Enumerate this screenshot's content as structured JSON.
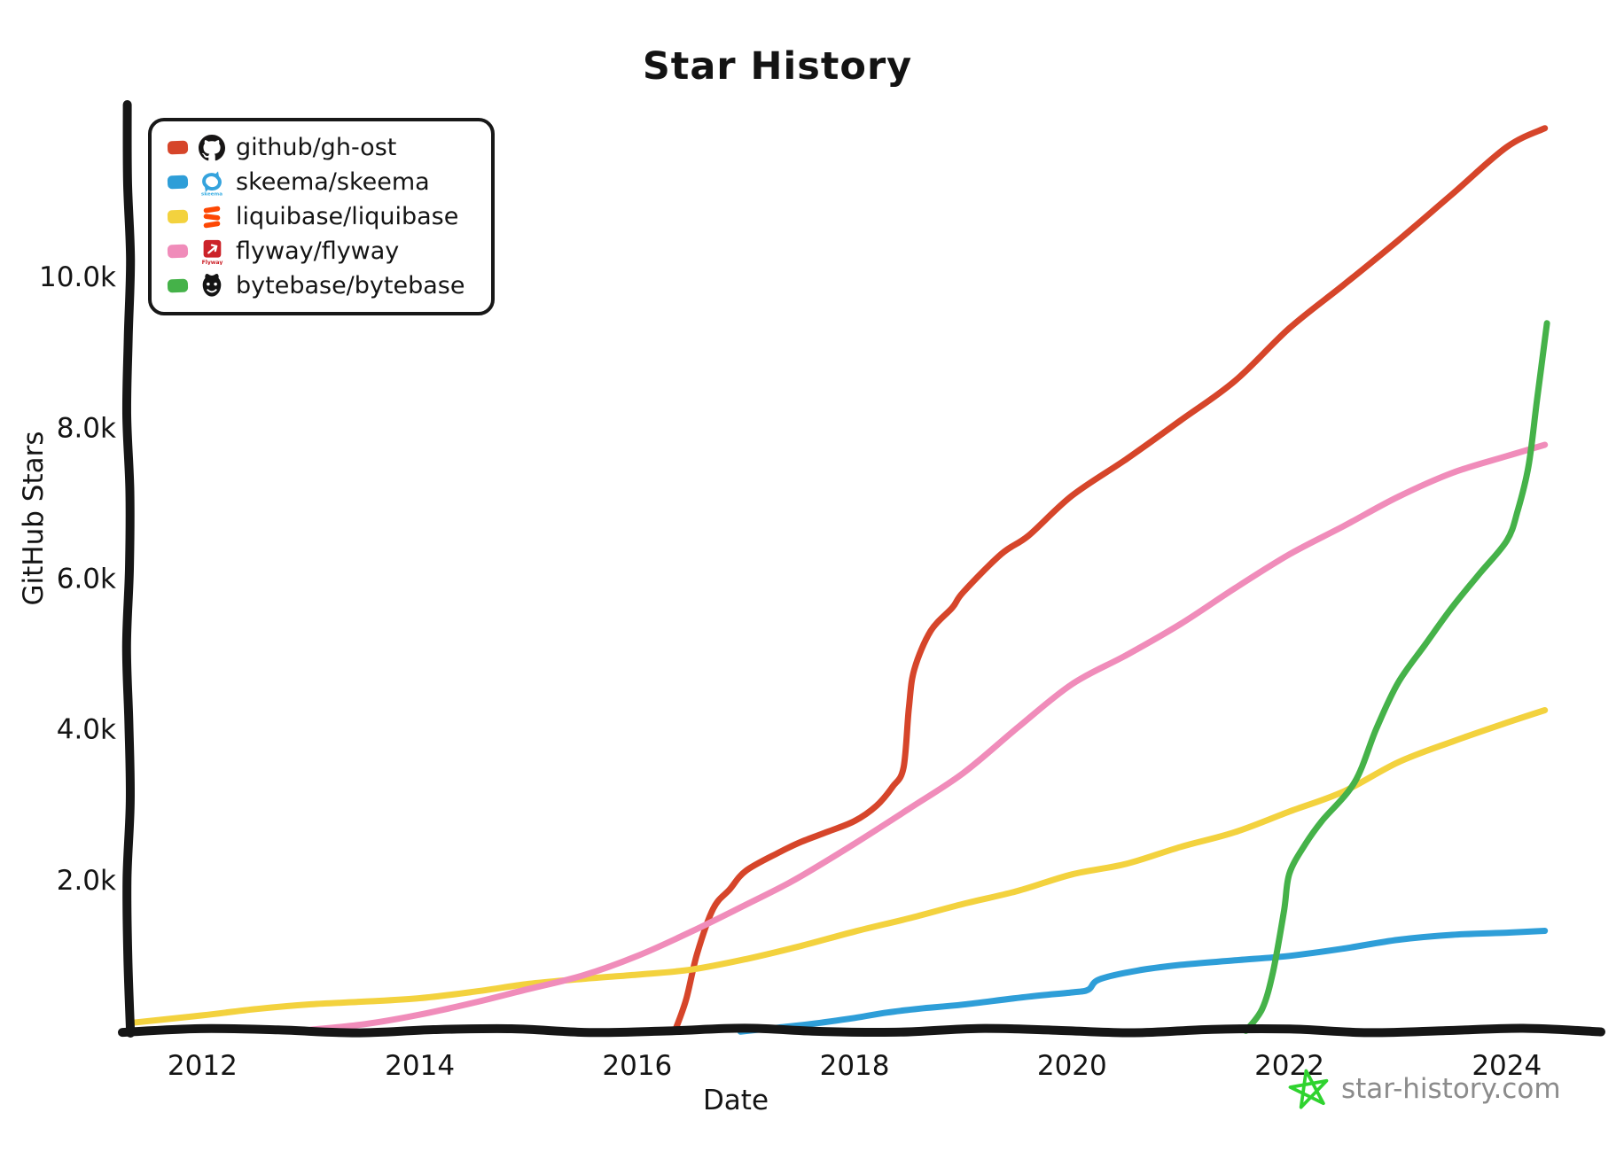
{
  "title": "Star History",
  "axes": {
    "ink": "#161616",
    "x_label": "Date",
    "y_label": "GitHub Stars",
    "x_ticks": [
      {
        "label": "2012",
        "year": 2012
      },
      {
        "label": "2014",
        "year": 2014
      },
      {
        "label": "2016",
        "year": 2016
      },
      {
        "label": "2018",
        "year": 2018
      },
      {
        "label": "2020",
        "year": 2020
      },
      {
        "label": "2022",
        "year": 2022
      },
      {
        "label": "2024",
        "year": 2024
      }
    ],
    "y_ticks": [
      {
        "label": "2.0k",
        "value": 2000
      },
      {
        "label": "4.0k",
        "value": 4000
      },
      {
        "label": "6.0k",
        "value": 6000
      },
      {
        "label": "8.0k",
        "value": 8000
      },
      {
        "label": "10.0k",
        "value": 10000
      }
    ]
  },
  "legend": [
    {
      "label": "github/gh-ost",
      "color": "#d6452a",
      "icon": "github-icon"
    },
    {
      "label": "skeema/skeema",
      "color": "#2e9ed8",
      "icon": "skeema-icon"
    },
    {
      "label": "liquibase/liquibase",
      "color": "#f3d23e",
      "icon": "liquibase-icon"
    },
    {
      "label": "flyway/flyway",
      "color": "#f08cba",
      "icon": "flyway-icon"
    },
    {
      "label": "bytebase/bytebase",
      "color": "#45b249",
      "icon": "bytebase-icon"
    }
  ],
  "watermark": {
    "text": "star-history.com",
    "star_color": "#2fd32f",
    "text_color": "#8b8b8b"
  },
  "chart_data": {
    "type": "line",
    "title": "Star History",
    "xlabel": "Date",
    "ylabel": "GitHub Stars",
    "x_unit": "decimal_year",
    "xlim": [
      2011.32,
      2024.85
    ],
    "ylim": [
      0,
      12200
    ],
    "grid": false,
    "legend_position": "top-left",
    "series": [
      {
        "name": "github/gh-ost",
        "color": "#d6452a",
        "points": [
          [
            2016.35,
            0
          ],
          [
            2016.45,
            400
          ],
          [
            2016.55,
            1000
          ],
          [
            2016.7,
            1600
          ],
          [
            2016.85,
            1850
          ],
          [
            2017.0,
            2100
          ],
          [
            2017.3,
            2350
          ],
          [
            2017.5,
            2500
          ],
          [
            2017.75,
            2650
          ],
          [
            2018.0,
            2800
          ],
          [
            2018.2,
            3000
          ],
          [
            2018.35,
            3250
          ],
          [
            2018.45,
            3500
          ],
          [
            2018.5,
            4300
          ],
          [
            2018.55,
            4800
          ],
          [
            2018.7,
            5300
          ],
          [
            2018.9,
            5600
          ],
          [
            2019.0,
            5800
          ],
          [
            2019.35,
            6300
          ],
          [
            2019.6,
            6550
          ],
          [
            2020.0,
            7100
          ],
          [
            2020.5,
            7600
          ],
          [
            2021.0,
            8100
          ],
          [
            2021.5,
            8600
          ],
          [
            2022.0,
            9300
          ],
          [
            2022.5,
            9900
          ],
          [
            2023.0,
            10500
          ],
          [
            2023.5,
            11100
          ],
          [
            2024.0,
            11700
          ],
          [
            2024.35,
            11950
          ]
        ]
      },
      {
        "name": "skeema/skeema",
        "color": "#2e9ed8",
        "points": [
          [
            2016.95,
            0
          ],
          [
            2017.3,
            60
          ],
          [
            2017.6,
            100
          ],
          [
            2018.0,
            160
          ],
          [
            2018.3,
            220
          ],
          [
            2018.6,
            270
          ],
          [
            2019.0,
            340
          ],
          [
            2019.6,
            470
          ],
          [
            2020.0,
            520
          ],
          [
            2020.15,
            550
          ],
          [
            2020.25,
            680
          ],
          [
            2020.6,
            780
          ],
          [
            2021.0,
            850
          ],
          [
            2021.5,
            930
          ],
          [
            2022.0,
            1010
          ],
          [
            2022.5,
            1100
          ],
          [
            2023.0,
            1190
          ],
          [
            2023.5,
            1250
          ],
          [
            2024.0,
            1300
          ],
          [
            2024.35,
            1340
          ]
        ]
      },
      {
        "name": "liquibase/liquibase",
        "color": "#f3d23e",
        "points": [
          [
            2011.35,
            120
          ],
          [
            2012.0,
            210
          ],
          [
            2012.5,
            270
          ],
          [
            2013.0,
            330
          ],
          [
            2013.5,
            390
          ],
          [
            2014.0,
            450
          ],
          [
            2014.5,
            520
          ],
          [
            2015.0,
            600
          ],
          [
            2015.5,
            670
          ],
          [
            2016.0,
            750
          ],
          [
            2016.5,
            830
          ],
          [
            2017.0,
            950
          ],
          [
            2017.5,
            1100
          ],
          [
            2018.0,
            1300
          ],
          [
            2018.5,
            1500
          ],
          [
            2019.0,
            1700
          ],
          [
            2019.5,
            1850
          ],
          [
            2020.0,
            2050
          ],
          [
            2020.5,
            2200
          ],
          [
            2021.0,
            2450
          ],
          [
            2021.5,
            2650
          ],
          [
            2022.0,
            2900
          ],
          [
            2022.5,
            3150
          ],
          [
            2023.0,
            3550
          ],
          [
            2023.5,
            3850
          ],
          [
            2024.0,
            4100
          ],
          [
            2024.35,
            4250
          ]
        ]
      },
      {
        "name": "flyway/flyway",
        "color": "#f08cba",
        "points": [
          [
            2013.0,
            30
          ],
          [
            2013.5,
            100
          ],
          [
            2014.0,
            200
          ],
          [
            2014.5,
            350
          ],
          [
            2015.0,
            550
          ],
          [
            2015.5,
            750
          ],
          [
            2016.0,
            1000
          ],
          [
            2016.5,
            1300
          ],
          [
            2017.0,
            1650
          ],
          [
            2017.45,
            2000
          ],
          [
            2018.0,
            2500
          ],
          [
            2018.5,
            2950
          ],
          [
            2019.0,
            3400
          ],
          [
            2019.5,
            4000
          ],
          [
            2020.0,
            4600
          ],
          [
            2020.5,
            5000
          ],
          [
            2021.0,
            5400
          ],
          [
            2021.5,
            5850
          ],
          [
            2022.0,
            6300
          ],
          [
            2022.5,
            6700
          ],
          [
            2023.0,
            7100
          ],
          [
            2023.5,
            7400
          ],
          [
            2024.0,
            7600
          ],
          [
            2024.35,
            7750
          ]
        ]
      },
      {
        "name": "bytebase/bytebase",
        "color": "#45b249",
        "points": [
          [
            2021.6,
            0
          ],
          [
            2021.75,
            300
          ],
          [
            2021.85,
            800
          ],
          [
            2021.95,
            1600
          ],
          [
            2022.0,
            2100
          ],
          [
            2022.15,
            2500
          ],
          [
            2022.3,
            2800
          ],
          [
            2022.6,
            3300
          ],
          [
            2022.8,
            4000
          ],
          [
            2023.0,
            4600
          ],
          [
            2023.25,
            5100
          ],
          [
            2023.5,
            5600
          ],
          [
            2023.75,
            6050
          ],
          [
            2024.0,
            6500
          ],
          [
            2024.1,
            6900
          ],
          [
            2024.2,
            7500
          ],
          [
            2024.28,
            8400
          ],
          [
            2024.37,
            9400
          ]
        ]
      }
    ]
  }
}
